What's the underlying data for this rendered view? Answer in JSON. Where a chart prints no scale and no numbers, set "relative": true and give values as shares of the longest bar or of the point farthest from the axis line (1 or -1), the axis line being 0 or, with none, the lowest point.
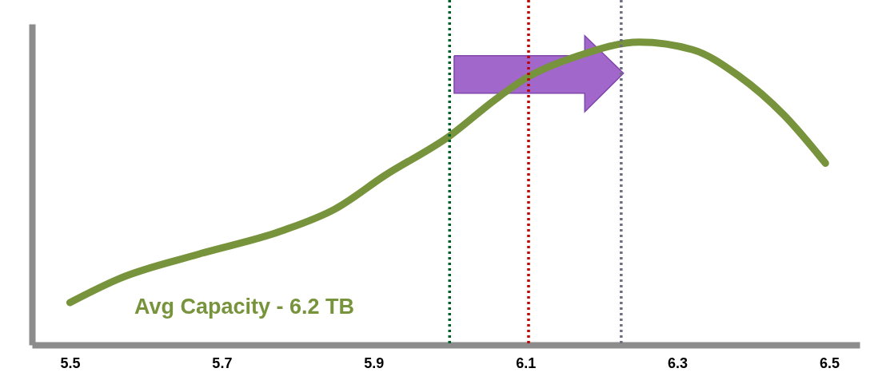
{
  "chart_data": {
    "type": "line",
    "relative": true,
    "x": [
      5.5,
      5.566,
      5.67,
      5.777,
      5.85,
      5.915,
      6.0,
      6.06,
      6.1,
      6.17,
      6.25,
      6.32,
      6.38,
      6.44,
      6.495
    ],
    "series": [
      {
        "color": "#77933c",
        "values": [
          0.14,
          0.22,
          0.3,
          0.375,
          0.45,
          0.56,
          0.69,
          0.81,
          0.88,
          0.955,
          1.0,
          0.975,
          0.89,
          0.76,
          0.6
        ]
      }
    ],
    "xlim": [
      5.45,
      6.54
    ],
    "xticks": [
      5.5,
      5.7,
      5.9,
      6.1,
      6.3,
      6.5
    ],
    "ref_lines": [
      {
        "axis": "x",
        "value": 6.0,
        "color": "#00602a",
        "line_style": "dotted"
      },
      {
        "axis": "x",
        "value": 6.104,
        "color": "#c00000",
        "line_style": "dotted"
      },
      {
        "axis": "x",
        "value": 6.226,
        "color": "#6e6e80",
        "line_style": "dotted"
      }
    ],
    "annotations": [
      "Avg  Capacity  -  6.2 TB"
    ],
    "grid": false,
    "line_style": "solid"
  }
}
